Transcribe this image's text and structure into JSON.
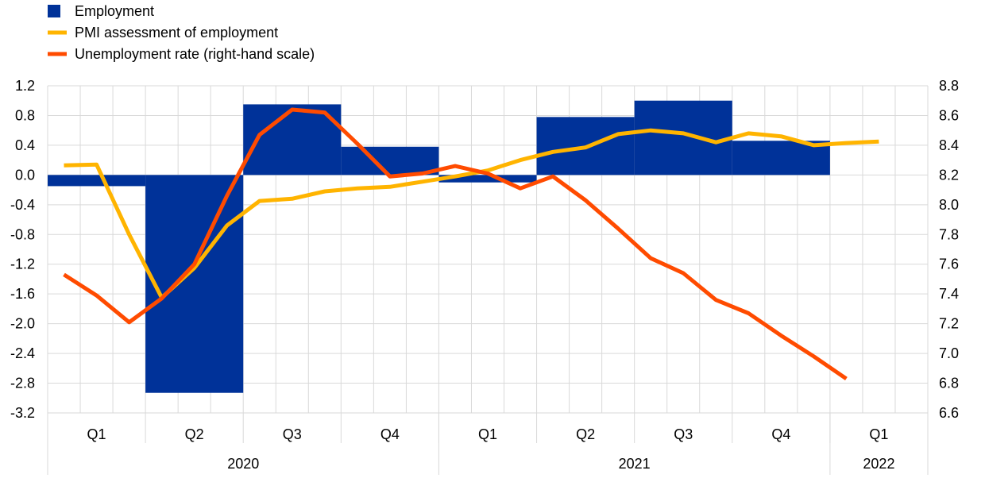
{
  "chart_data": {
    "type": "bar",
    "legend": {
      "position": "top-left",
      "items": [
        {
          "label": "Employment",
          "swatch": "square",
          "color": "#003299"
        },
        {
          "label": "PMI assessment of employment",
          "swatch": "line",
          "color": "#FFB400"
        },
        {
          "label": "Unemployment rate (right-hand scale)",
          "swatch": "line",
          "color": "#FF4B00"
        }
      ]
    },
    "grid": true,
    "y_left": {
      "min": -3.2,
      "max": 1.2,
      "ticks": [
        "1.2",
        "0.8",
        "0.4",
        "0.0",
        "-0.4",
        "-0.8",
        "-1.2",
        "-1.6",
        "-2.0",
        "-2.4",
        "-2.8",
        "-3.2"
      ]
    },
    "y_right": {
      "min": 6.6,
      "max": 8.8,
      "ticks": [
        "8.8",
        "8.6",
        "8.4",
        "8.2",
        "8.0",
        "7.8",
        "7.6",
        "7.4",
        "7.2",
        "7.0",
        "6.8",
        "6.6"
      ]
    },
    "x_axis": {
      "quarters": [
        "Q1",
        "Q2",
        "Q3",
        "Q4",
        "Q1",
        "Q2",
        "Q3",
        "Q4",
        "Q1"
      ],
      "years": [
        {
          "label": "2020",
          "span": 4
        },
        {
          "label": "2021",
          "span": 4
        },
        {
          "label": "2022",
          "span": 1
        }
      ],
      "months_total": 27
    },
    "series": [
      {
        "name": "Employment",
        "kind": "bar",
        "axis": "left",
        "color": "#003299",
        "values": [
          -0.15,
          -2.93,
          0.95,
          0.38,
          -0.1,
          0.78,
          1.0,
          0.46,
          null
        ]
      },
      {
        "name": "PMI assessment of employment",
        "kind": "line",
        "axis": "left",
        "color": "#FFB400",
        "x": [
          "2020-01",
          "2020-02",
          "2020-03",
          "2020-04",
          "2020-05",
          "2020-06",
          "2020-07",
          "2020-08",
          "2020-09",
          "2020-10",
          "2020-11",
          "2020-12",
          "2021-01",
          "2021-02",
          "2021-03",
          "2021-04",
          "2021-05",
          "2021-06",
          "2021-07",
          "2021-08",
          "2021-09",
          "2021-10",
          "2021-11",
          "2021-12",
          "2022-01",
          "2022-02"
        ],
        "values": [
          0.13,
          0.14,
          -0.8,
          -1.65,
          -1.25,
          -0.68,
          -0.35,
          -0.32,
          -0.22,
          -0.18,
          -0.16,
          -0.09,
          -0.02,
          0.06,
          0.2,
          0.31,
          0.37,
          0.55,
          0.6,
          0.56,
          0.44,
          0.56,
          0.52,
          0.4,
          0.43,
          0.45
        ]
      },
      {
        "name": "Unemployment rate (right-hand scale)",
        "kind": "line",
        "axis": "right",
        "color": "#FF4B00",
        "x": [
          "2020-01",
          "2020-02",
          "2020-03",
          "2020-04",
          "2020-05",
          "2020-06",
          "2020-07",
          "2020-08",
          "2020-09",
          "2020-10",
          "2020-11",
          "2020-12",
          "2021-01",
          "2021-02",
          "2021-03",
          "2021-04",
          "2021-05",
          "2021-06",
          "2021-07",
          "2021-08",
          "2021-09",
          "2021-10",
          "2021-11",
          "2021-12",
          "2022-01"
        ],
        "values": [
          7.53,
          7.39,
          7.21,
          7.37,
          7.6,
          8.06,
          8.47,
          8.64,
          8.62,
          8.41,
          8.19,
          8.21,
          8.26,
          8.21,
          8.11,
          8.19,
          8.03,
          7.84,
          7.64,
          7.54,
          7.36,
          7.27,
          7.12,
          6.98,
          6.83
        ]
      }
    ]
  }
}
